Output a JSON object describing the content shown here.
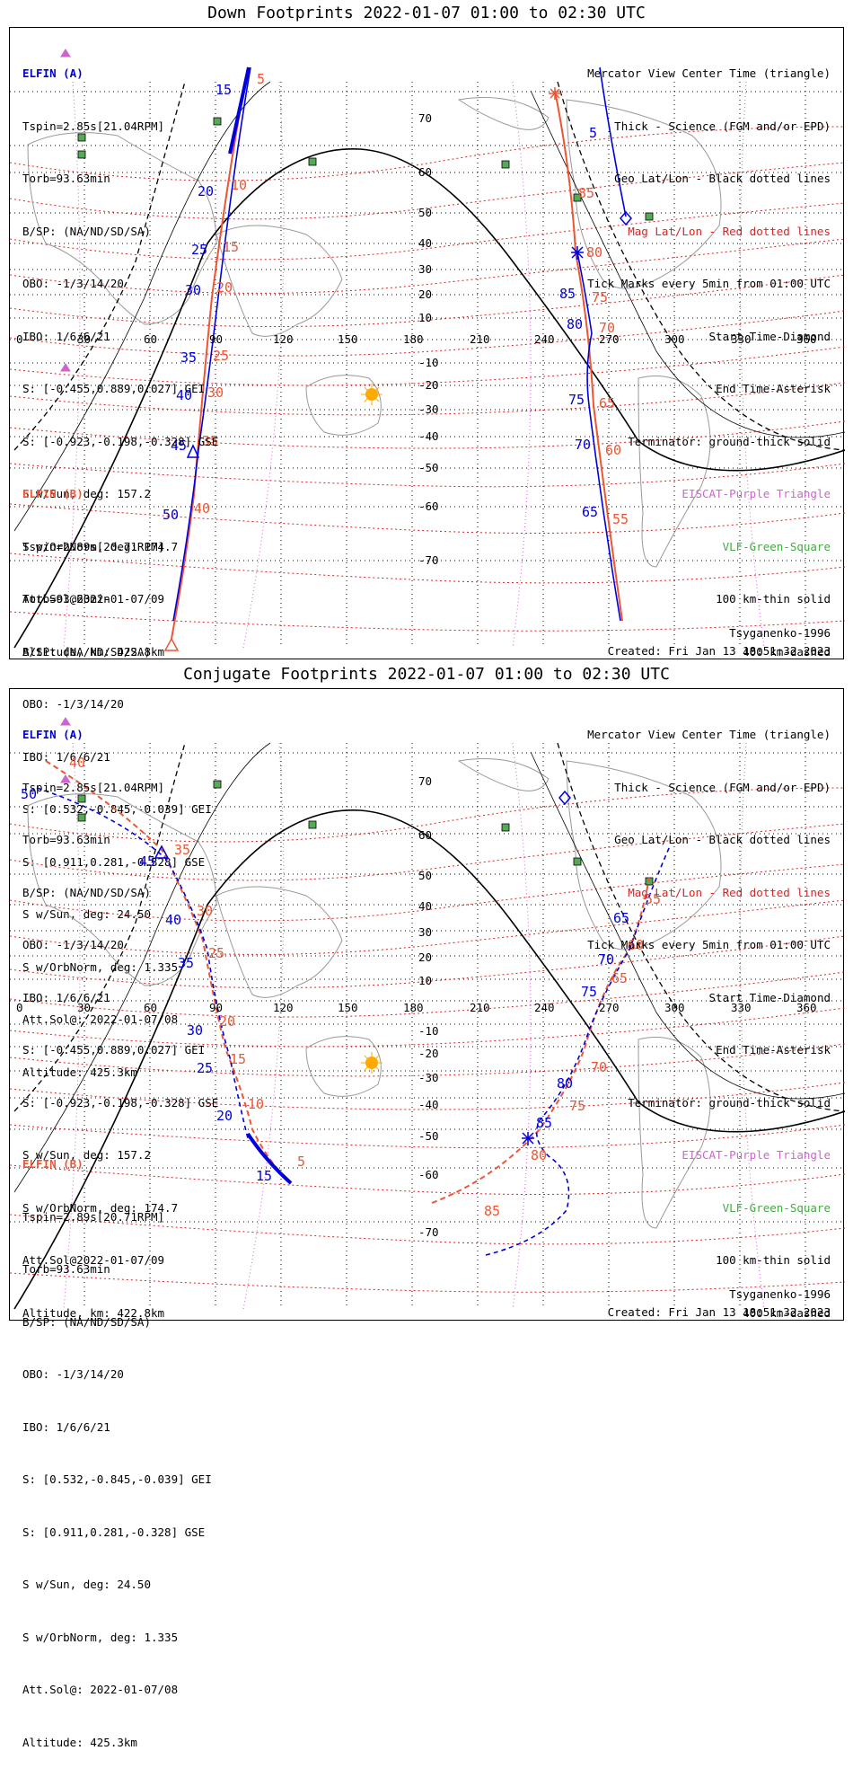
{
  "panels": [
    {
      "title": "Down Footprints 2022-01-07 01:00 to 02:30 UTC",
      "sat_a": {
        "name": "ELFIN (A)",
        "lines": [
          "Tspin=2.85s[21.04RPM]",
          "Torb=93.63min",
          "B/SP: (NA/ND/SD/SA)",
          "OBO: -1/3/14/20",
          "IBO: 1/6/6/21",
          "S: [-0.455,0.889,0.027] GEI",
          "S: [-0.923,-0.198,-0.328] GSE",
          "S w/Sun, deg: 157.2",
          "S w/OrbNorm, deg: 174.7",
          "Att.Sol@2022-01-07/09",
          "Altitude, km: 422.8km"
        ]
      },
      "sat_b": {
        "name": "ELFIN (B)",
        "lines": [
          "Tspin=2.89s[20.71RPM]",
          "Torb=93.63min",
          "B/SP: (NA/ND/SD/SA)",
          "OBO: -1/3/14/20",
          "IBO: 1/6/6/21",
          "S: [0.532,-0.845,-0.039] GEI",
          "S: [0.911,0.281,-0.328] GSE",
          "S w/Sun, deg: 24.50",
          "S w/OrbNorm, deg: 1.335",
          "Att.Sol@: 2022-01-07/08",
          "Altitude: 425.3km"
        ]
      },
      "legend": [
        "Mercator View Center Time (triangle)",
        "Thick - Science (FGM and/or EPD)",
        "Geo Lat/Lon - Black dotted lines",
        "Mag Lat/Lon - Red dotted lines",
        "Tick Marks every 5min from 01:00 UTC",
        "Start Time-Diamond",
        "End Time-Asterisk",
        "Terminator: ground-thick solid",
        "EISCAT-Purple Triangle",
        "VLF-Green-Square",
        "100 km-thin solid",
        "400 km-dashed"
      ],
      "model": "Tsyganenko-1996",
      "created": "Created: Fri Jan 13 18:51:32 2023"
    },
    {
      "title": "Conjugate Footprints 2022-01-07 01:00 to 02:30 UTC",
      "sat_a": {
        "name": "ELFIN (A)",
        "lines": [
          "Tspin=2.85s[21.04RPM]",
          "Torb=93.63min",
          "B/SP: (NA/ND/SD/SA)",
          "OBO: -1/3/14/20",
          "IBO: 1/6/6/21",
          "S: [-0.455,0.889,0.027] GEI",
          "S: [-0.923,-0.198,-0.328] GSE",
          "S w/Sun, deg: 157.2",
          "S w/OrbNorm, deg: 174.7",
          "Att.Sol@2022-01-07/09",
          "Altitude, km: 422.8km"
        ]
      },
      "sat_b": {
        "name": "ELFIN (B)",
        "lines": [
          "Tspin=2.89s[20.71RPM]",
          "Torb=93.63min",
          "B/SP: (NA/ND/SD/SA)",
          "OBO: -1/3/14/20",
          "IBO: 1/6/6/21",
          "S: [0.532,-0.845,-0.039] GEI",
          "S: [0.911,0.281,-0.328] GSE",
          "S w/Sun, deg: 24.50",
          "S w/OrbNorm, deg: 1.335",
          "Att.Sol@: 2022-01-07/08",
          "Altitude: 425.3km"
        ]
      },
      "legend": [
        "Mercator View Center Time (triangle)",
        "Thick - Science (FGM and/or EPD)",
        "Geo Lat/Lon - Black dotted lines",
        "Mag Lat/Lon - Red dotted lines",
        "Tick Marks every 5min from 01:00 UTC",
        "Start Time-Diamond",
        "End Time-Asterisk",
        "Terminator: ground-thick solid",
        "EISCAT-Purple Triangle",
        "VLF-Green-Square",
        "100 km-thin solid",
        "400 km-dashed"
      ],
      "model": "Tsyganenko-1996",
      "created": "Created: Fri Jan 13 18:51:32 2023"
    }
  ],
  "map": {
    "lon_labels": [
      "0",
      "30",
      "60",
      "90",
      "120",
      "150",
      "180",
      "210",
      "240",
      "270",
      "300",
      "330",
      "360"
    ],
    "lat_labels": [
      "70",
      "60",
      "50",
      "40",
      "30",
      "20",
      "10",
      "-10",
      "-20",
      "-30",
      "-40",
      "-50",
      "-60",
      "-70"
    ]
  },
  "down_ticks": {
    "a_first": [
      "15",
      "20",
      "25",
      "30",
      "35",
      "40",
      "45",
      "50"
    ],
    "b_first": [
      "5",
      "10",
      "15",
      "20",
      "25",
      "30",
      "35",
      "40"
    ],
    "a_second": [
      "5",
      "85",
      "80",
      "75",
      "70",
      "65"
    ],
    "b_second": [
      "85",
      "80",
      "75",
      "70",
      "65",
      "60",
      "55"
    ]
  },
  "conj_ticks": {
    "a_first": [
      "50",
      "45",
      "40",
      "35",
      "30",
      "25",
      "20",
      "15"
    ],
    "b_first": [
      "40",
      "35",
      "30",
      "25",
      "20",
      "15",
      "10",
      "5"
    ],
    "a_second": [
      "65",
      "70",
      "75",
      "80",
      "85"
    ],
    "b_second": [
      "55",
      "60",
      "65",
      "70",
      "75",
      "80",
      "85"
    ]
  },
  "colors": {
    "sat_a": "#0000dd",
    "sat_b": "#ee5533",
    "mag_grid": "#dd2222",
    "geo_grid": "#000000",
    "eiscat": "#cc66cc",
    "vlf": "#44aa44",
    "sun": "#ffaa00"
  },
  "icons": [
    "sun-icon",
    "diamond-icon",
    "asterisk-icon",
    "triangle-icon",
    "square-icon"
  ]
}
